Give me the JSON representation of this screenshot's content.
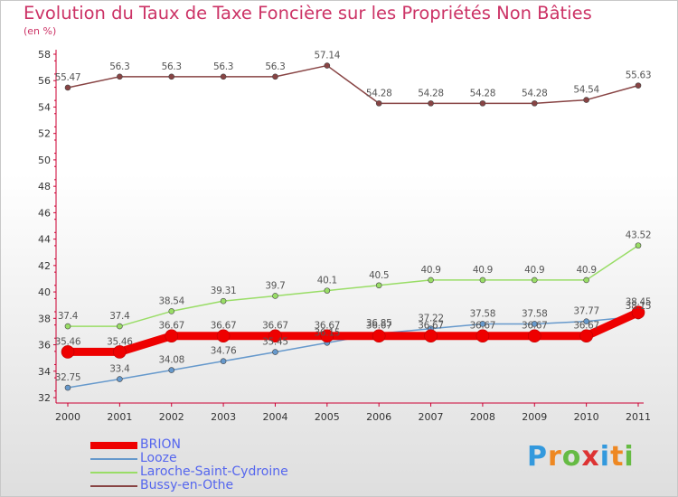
{
  "chart_data": {
    "type": "line",
    "title": "Evolution du Taux de Taxe Foncière sur les Propriétés Non Bâties",
    "subtitle": "(en %)",
    "xlabel": "",
    "ylabel": "",
    "x": [
      "2000",
      "2001",
      "2002",
      "2003",
      "2004",
      "2005",
      "2006",
      "2007",
      "2008",
      "2009",
      "2010",
      "2011"
    ],
    "ylim": [
      32,
      58
    ],
    "yticks": [
      "32",
      "34",
      "36",
      "38",
      "40",
      "42",
      "44",
      "46",
      "48",
      "50",
      "52",
      "54",
      "56",
      "58"
    ],
    "grid": false,
    "legend": "bottom-left",
    "series": [
      {
        "name": "BRION",
        "color": "#ee0000",
        "values": [
          35.46,
          35.46,
          36.67,
          36.67,
          36.67,
          36.67,
          36.67,
          36.67,
          36.67,
          36.67,
          36.67,
          38.45
        ],
        "labels": [
          "35.46",
          "35.46",
          "36.67",
          "36.67",
          "36.67",
          "36.67",
          "36.67",
          "36.67",
          "36.67",
          "36.67",
          "36.67",
          "38.45"
        ]
      },
      {
        "name": "Looze",
        "color": "#6699cc",
        "values": [
          32.75,
          33.4,
          34.08,
          34.76,
          35.45,
          36.15,
          36.85,
          37.22,
          37.58,
          37.58,
          37.77,
          38.15
        ],
        "labels": [
          "32.75",
          "33.4",
          "34.08",
          "34.76",
          "35.45",
          "36.15",
          "36.85",
          "37.22",
          "37.58",
          "37.58",
          "37.77",
          "38.15"
        ]
      },
      {
        "name": "Laroche-Saint-Cydroine",
        "color": "#99dd66",
        "values": [
          37.4,
          37.4,
          38.54,
          39.31,
          39.7,
          40.1,
          40.5,
          40.9,
          40.9,
          40.9,
          40.9,
          43.52
        ],
        "labels": [
          "37.4",
          "37.4",
          "38.54",
          "39.31",
          "39.7",
          "40.1",
          "40.5",
          "40.9",
          "40.9",
          "40.9",
          "40.9",
          "43.52"
        ]
      },
      {
        "name": "Bussy-en-Othe",
        "color": "#884444",
        "values": [
          55.47,
          56.3,
          56.3,
          56.3,
          56.3,
          57.14,
          54.28,
          54.28,
          54.28,
          54.28,
          54.54,
          55.63
        ],
        "labels": [
          "55.47",
          "56.3",
          "56.3",
          "56.3",
          "56.3",
          "57.14",
          "54.28",
          "54.28",
          "54.28",
          "54.28",
          "54.54",
          "55.63"
        ]
      }
    ]
  },
  "logo": {
    "letters": [
      "P",
      "r",
      "o",
      "x",
      "i",
      "t",
      "i"
    ]
  },
  "colors": {
    "title": "#cc3366",
    "axis": "#cc0033",
    "tick_text": "#333333",
    "value_text": "#555555",
    "legend_text": "#5566ee"
  }
}
